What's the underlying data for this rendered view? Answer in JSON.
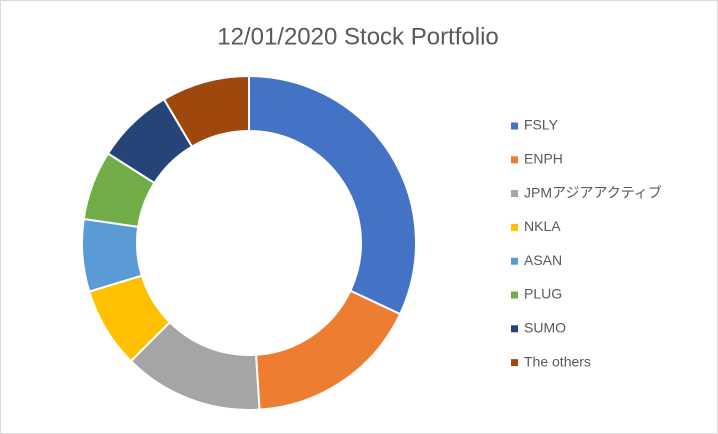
{
  "chart_data": {
    "type": "donut",
    "title": "12/01/2020 Stock Portfolio",
    "categories": [
      "FSLY",
      "ENPH",
      "JPMアジアアクティブ",
      "NKLA",
      "ASAN",
      "PLUG",
      "SUMO",
      "The others"
    ],
    "values": [
      32,
      17,
      13.5,
      7.8,
      7,
      6.7,
      7.5,
      8.5
    ],
    "colors": [
      "#4472c4",
      "#ed7d31",
      "#a5a5a5",
      "#ffc000",
      "#5b9bd5",
      "#70ad47",
      "#264478",
      "#9e480e"
    ],
    "legend": "right"
  }
}
